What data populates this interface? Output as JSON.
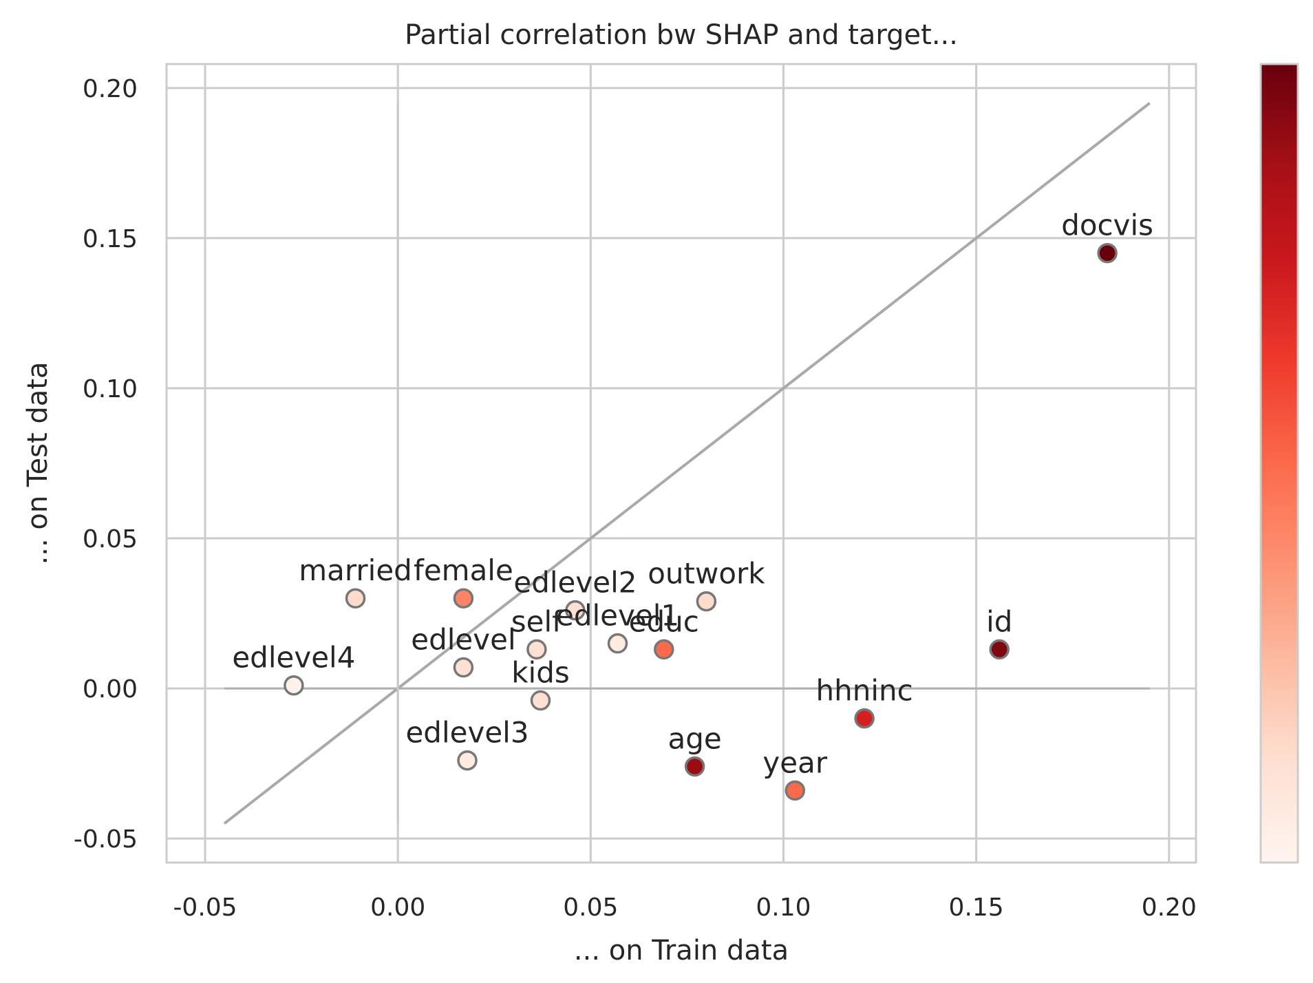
{
  "chart_data": {
    "type": "scatter",
    "title": "Partial correlation bw SHAP and target...",
    "xlabel": "... on Train data",
    "ylabel": "... on Test data",
    "xlim": [
      -0.06,
      0.207
    ],
    "ylim": [
      -0.058,
      0.208
    ],
    "xticks": [
      -0.05,
      0.0,
      0.05,
      0.1,
      0.15,
      0.2
    ],
    "xtick_labels": [
      "-0.05",
      "0.00",
      "0.05",
      "0.10",
      "0.15",
      "0.20"
    ],
    "yticks": [
      -0.05,
      0.0,
      0.05,
      0.1,
      0.15,
      0.2
    ],
    "ytick_labels": [
      "-0.05",
      "0.00",
      "0.05",
      "0.10",
      "0.15",
      "0.20"
    ],
    "grid": true,
    "legend": "none",
    "colormap": "Reds",
    "colorbar": true,
    "reference_lines": {
      "diagonal": [
        [
          -0.045,
          -0.045
        ],
        [
          0.195,
          0.195
        ]
      ],
      "horizontal_zero": [
        -0.045,
        0.195
      ],
      "vertical_zero": [
        -0.045,
        0.195
      ]
    },
    "points": [
      {
        "label": "docvis",
        "x": 0.184,
        "y": 0.145,
        "c": 1.0
      },
      {
        "label": "id",
        "x": 0.156,
        "y": 0.013,
        "c": 0.95
      },
      {
        "label": "age",
        "x": 0.077,
        "y": -0.026,
        "c": 0.9
      },
      {
        "label": "hhninc",
        "x": 0.121,
        "y": -0.01,
        "c": 0.72
      },
      {
        "label": "year",
        "x": 0.103,
        "y": -0.034,
        "c": 0.5
      },
      {
        "label": "educ",
        "x": 0.069,
        "y": 0.013,
        "c": 0.5
      },
      {
        "label": "female",
        "x": 0.017,
        "y": 0.03,
        "c": 0.42
      },
      {
        "label": "outwork",
        "x": 0.08,
        "y": 0.029,
        "c": 0.14
      },
      {
        "label": "married",
        "x": -0.011,
        "y": 0.03,
        "c": 0.14
      },
      {
        "label": "edlevel2",
        "x": 0.046,
        "y": 0.026,
        "c": 0.12
      },
      {
        "label": "self",
        "x": 0.036,
        "y": 0.013,
        "c": 0.12
      },
      {
        "label": "kids",
        "x": 0.037,
        "y": -0.004,
        "c": 0.12
      },
      {
        "label": "edlevel",
        "x": 0.017,
        "y": 0.007,
        "c": 0.12
      },
      {
        "label": "edlevel1",
        "x": 0.057,
        "y": 0.015,
        "c": 0.06
      },
      {
        "label": "edlevel3",
        "x": 0.018,
        "y": -0.024,
        "c": 0.06
      },
      {
        "label": "edlevel4",
        "x": -0.027,
        "y": 0.001,
        "c": 0.02
      }
    ],
    "colors": {
      "grid": "#cccccc",
      "spine": "#cccccc",
      "reference_line": "#a9a9a9",
      "marker_edge": "#777777",
      "text": "#262626"
    }
  }
}
